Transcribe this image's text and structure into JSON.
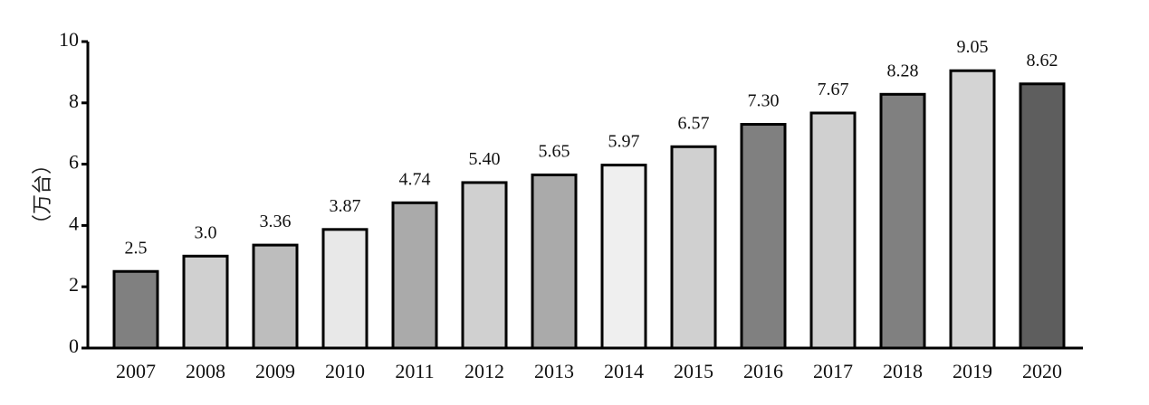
{
  "chart_data": {
    "type": "bar",
    "title": "",
    "xlabel": "",
    "ylabel": "（万台）",
    "ylim": [
      0,
      10
    ],
    "yticks": [
      0,
      2,
      4,
      6,
      8,
      10
    ],
    "grid": false,
    "categories": [
      "2007",
      "2008",
      "2009",
      "2010",
      "2011",
      "2012",
      "2013",
      "2014",
      "2015",
      "2016",
      "2017",
      "2018",
      "2019",
      "2020"
    ],
    "values": [
      2.5,
      3.0,
      3.36,
      3.87,
      4.74,
      5.4,
      5.65,
      5.97,
      6.57,
      7.3,
      7.67,
      8.28,
      9.05,
      8.62
    ],
    "value_labels": [
      "2.5",
      "3.0",
      "3.36",
      "3.87",
      "4.74",
      "5.40",
      "5.65",
      "5.97",
      "6.57",
      "7.30",
      "7.67",
      "8.28",
      "9.05",
      "8.62"
    ],
    "bar_colors": [
      "#808080",
      "#d0d0d0",
      "#bdbdbd",
      "#e8e8e8",
      "#aaaaaa",
      "#d0d0d0",
      "#aaaaaa",
      "#efefef",
      "#d0d0d0",
      "#808080",
      "#d0d0d0",
      "#808080",
      "#d4d4d4",
      "#5e5e5e"
    ]
  }
}
